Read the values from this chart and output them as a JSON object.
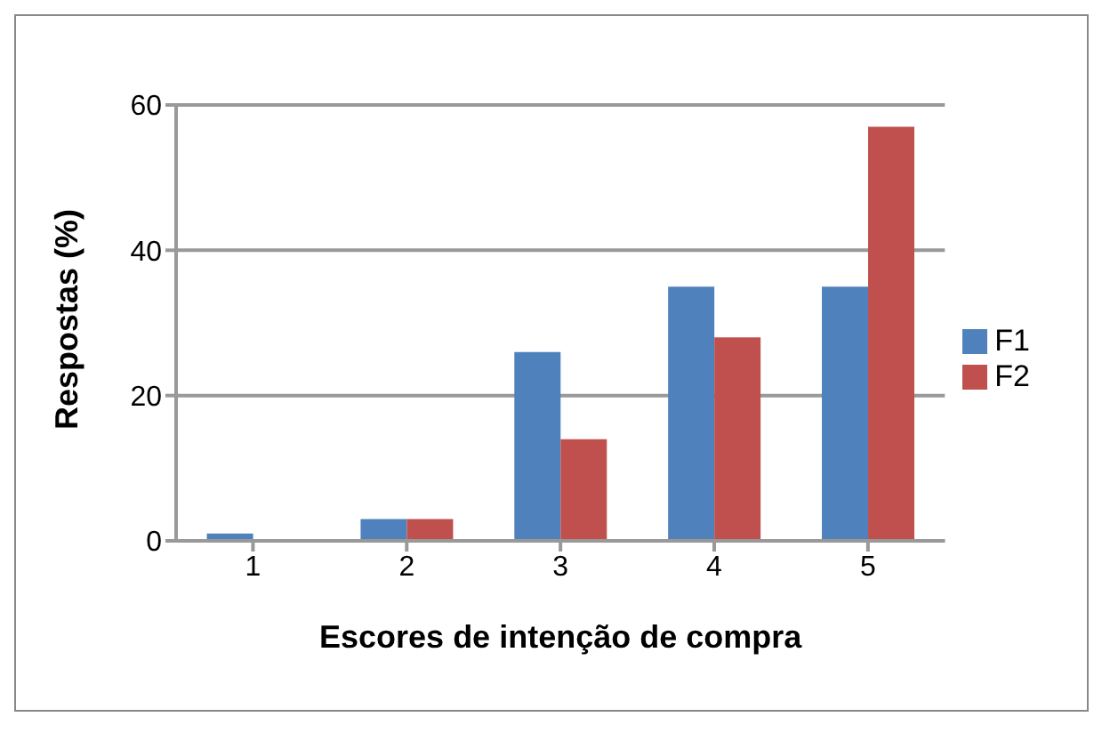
{
  "chart_data": {
    "type": "bar",
    "xlabel": "Escores de intenção de compra",
    "ylabel": "Respostas (%)",
    "categories": [
      "1",
      "2",
      "3",
      "4",
      "5"
    ],
    "series": [
      {
        "name": "F1",
        "color": "#4f81bd",
        "values": [
          1,
          3,
          26,
          35,
          35
        ]
      },
      {
        "name": "F2",
        "color": "#c0504d",
        "values": [
          0,
          3,
          14,
          28,
          57
        ]
      }
    ],
    "ylim": [
      0,
      60
    ],
    "yticks": [
      0,
      20,
      40,
      60
    ],
    "grid": "y",
    "legend": "right"
  }
}
